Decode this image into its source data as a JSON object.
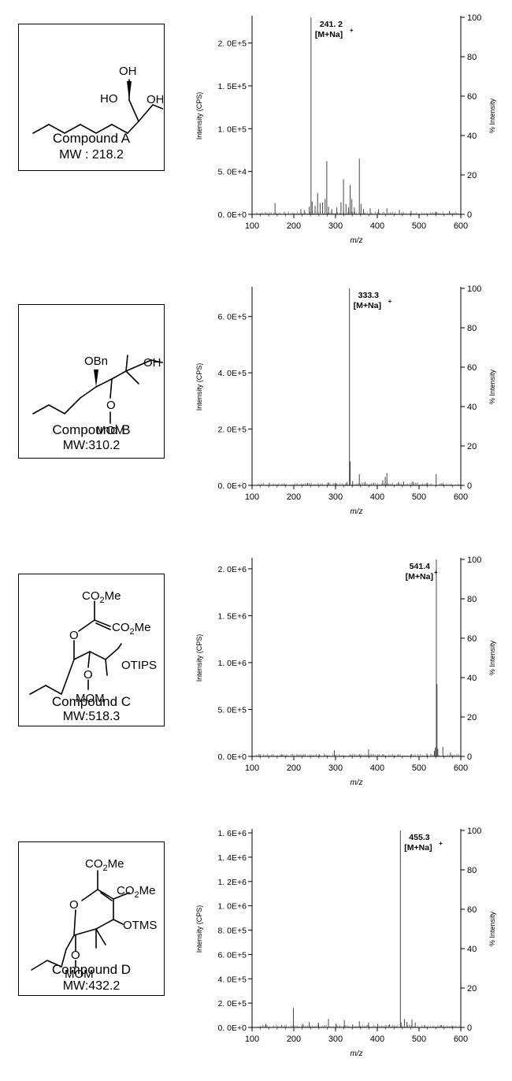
{
  "compounds": [
    {
      "name": "Compound A",
      "mw": "MW : 218.2",
      "labels": {
        "oh_top": "OH",
        "oh_right": "OH",
        "ho": "HO"
      }
    },
    {
      "name": "Compound B",
      "mw": "MW:310.2",
      "labels": {
        "obn": "OBn",
        "oh": "OH",
        "o": "O",
        "mom": "MOM"
      }
    },
    {
      "name": "Compound C",
      "mw": "MW:518.3",
      "labels": {
        "co2me_top": "CO2Me",
        "co2me_right": "CO2Me",
        "o_ring": "O",
        "otips": "OTIPS",
        "o": "O",
        "mom": "MOM"
      }
    },
    {
      "name": "Compound D",
      "mw": "MW:432.2",
      "labels": {
        "co2me_top": "CO2Me",
        "co2me_right": "CO2Me",
        "o_ring": "O",
        "otms": "OTMS",
        "o": "O",
        "mom": "MOM"
      }
    }
  ],
  "chart_data": [
    {
      "type": "bar",
      "xlabel": "m/z",
      "ylabel": "Intensity (CPS)",
      "y2label": "% Intensity",
      "xlim": [
        100,
        600
      ],
      "xticks": [
        100,
        200,
        300,
        400,
        500,
        600
      ],
      "ylim": [
        0,
        230000
      ],
      "yticks": [
        0,
        50000,
        100000,
        150000,
        200000
      ],
      "ytick_labels": [
        "0. 0E+0",
        "5. 0E+4",
        "1. 0E+5",
        "1. 5E+5",
        "2. 0E+5"
      ],
      "y2ticks": [
        0,
        20,
        40,
        60,
        80,
        100
      ],
      "y2max": 100,
      "peak_label": "241. 2",
      "adduct_label": "[M+Na]",
      "peaks": [
        [
          155,
          13000
        ],
        [
          217,
          6000
        ],
        [
          225,
          5000
        ],
        [
          237,
          9000
        ],
        [
          241.2,
          230000
        ],
        [
          244,
          15000
        ],
        [
          251,
          10000
        ],
        [
          257,
          25000
        ],
        [
          263,
          13000
        ],
        [
          269,
          14000
        ],
        [
          275,
          18000
        ],
        [
          279,
          62000
        ],
        [
          283,
          9000
        ],
        [
          291,
          6000
        ],
        [
          303,
          8000
        ],
        [
          313,
          14000
        ],
        [
          319,
          41000
        ],
        [
          325,
          12000
        ],
        [
          331,
          8000
        ],
        [
          335,
          34000
        ],
        [
          339,
          18000
        ],
        [
          345,
          8000
        ],
        [
          357,
          65000
        ],
        [
          361,
          12000
        ],
        [
          367,
          6000
        ],
        [
          383,
          7000
        ],
        [
          403,
          6000
        ],
        [
          423,
          7000
        ],
        [
          453,
          5000
        ],
        [
          481,
          4000
        ],
        [
          541,
          3000
        ],
        [
          573,
          4000
        ]
      ]
    },
    {
      "type": "bar",
      "xlabel": "m/z",
      "ylabel": "Intensity (CPS)",
      "y2label": "% Intensity",
      "xlim": [
        100,
        600
      ],
      "xticks": [
        100,
        200,
        300,
        400,
        500,
        600
      ],
      "ylim": [
        0,
        700000
      ],
      "yticks": [
        0,
        200000,
        400000,
        600000
      ],
      "ytick_labels": [
        "0. 0E+0",
        "2. 0E+5",
        "4. 0E+5",
        "6. 0E+5"
      ],
      "y2ticks": [
        0,
        20,
        40,
        60,
        80,
        100
      ],
      "y2max": 100,
      "peak_label": "333.3",
      "adduct_label": "[M+Na]",
      "peaks": [
        [
          233,
          8000
        ],
        [
          283,
          10000
        ],
        [
          301,
          8000
        ],
        [
          327,
          12000
        ],
        [
          333.3,
          700000
        ],
        [
          335,
          85000
        ],
        [
          341,
          15000
        ],
        [
          357,
          40000
        ],
        [
          371,
          12000
        ],
        [
          391,
          10000
        ],
        [
          413,
          18000
        ],
        [
          419,
          30000
        ],
        [
          423,
          44000
        ],
        [
          451,
          12000
        ],
        [
          463,
          14000
        ],
        [
          485,
          14000
        ],
        [
          519,
          9000
        ],
        [
          541,
          40000
        ],
        [
          557,
          8000
        ]
      ]
    },
    {
      "type": "bar",
      "xlabel": "m/z",
      "ylabel": "Intensity (CPS)",
      "y2label": "% Intensity",
      "xlim": [
        100,
        600
      ],
      "xticks": [
        100,
        200,
        300,
        400,
        500,
        600
      ],
      "ylim": [
        0,
        2100000
      ],
      "yticks": [
        0,
        500000,
        1000000,
        1500000,
        2000000
      ],
      "ytick_labels": [
        "0. 0E+0",
        "5. 0E+5",
        "1. 0E+6",
        "1. 5E+6",
        "2. 0E+6"
      ],
      "y2ticks": [
        0,
        20,
        40,
        60,
        80,
        100
      ],
      "y2max": 100,
      "peak_label": "541.4",
      "adduct_label": "[M+Na]",
      "peaks": [
        [
          119,
          25000
        ],
        [
          171,
          15000
        ],
        [
          227,
          20000
        ],
        [
          261,
          25000
        ],
        [
          297,
          65000
        ],
        [
          335,
          20000
        ],
        [
          357,
          25000
        ],
        [
          379,
          75000
        ],
        [
          413,
          20000
        ],
        [
          449,
          20000
        ],
        [
          481,
          25000
        ],
        [
          519,
          30000
        ],
        [
          537,
          60000
        ],
        [
          539,
          95000
        ],
        [
          541.4,
          2100000
        ],
        [
          543,
          770000
        ],
        [
          545,
          80000
        ],
        [
          557,
          100000
        ],
        [
          575,
          40000
        ]
      ]
    },
    {
      "type": "bar",
      "xlabel": "m/z",
      "ylabel": "Intensity (CPS)",
      "y2label": "% Intensity",
      "xlim": [
        100,
        600
      ],
      "xticks": [
        100,
        200,
        300,
        400,
        500,
        600
      ],
      "ylim": [
        0,
        1620000
      ],
      "yticks": [
        0,
        200000,
        400000,
        600000,
        800000,
        1000000,
        1200000,
        1400000,
        1600000
      ],
      "ytick_labels": [
        "0. 0E+0",
        "2. 0E+5",
        "4. 0E+5",
        "6. 0E+5",
        "8. 0E+5",
        "1. 0E+6",
        "1. 2E+6",
        "1. 4E+6",
        "1. 6E+6"
      ],
      "y2ticks": [
        0,
        20,
        40,
        60,
        80,
        100
      ],
      "y2max": 100,
      "peak_label": "455.3",
      "adduct_label": "[M+Na]",
      "peaks": [
        [
          133,
          30000
        ],
        [
          171,
          20000
        ],
        [
          199,
          160000
        ],
        [
          221,
          30000
        ],
        [
          237,
          45000
        ],
        [
          259,
          40000
        ],
        [
          283,
          70000
        ],
        [
          301,
          30000
        ],
        [
          321,
          60000
        ],
        [
          341,
          25000
        ],
        [
          357,
          50000
        ],
        [
          379,
          40000
        ],
        [
          401,
          30000
        ],
        [
          429,
          25000
        ],
        [
          455.3,
          1620000
        ],
        [
          457,
          40000
        ],
        [
          465,
          70000
        ],
        [
          471,
          45000
        ],
        [
          483,
          65000
        ],
        [
          491,
          40000
        ],
        [
          513,
          20000
        ],
        [
          553,
          20000
        ],
        [
          581,
          15000
        ]
      ]
    }
  ]
}
